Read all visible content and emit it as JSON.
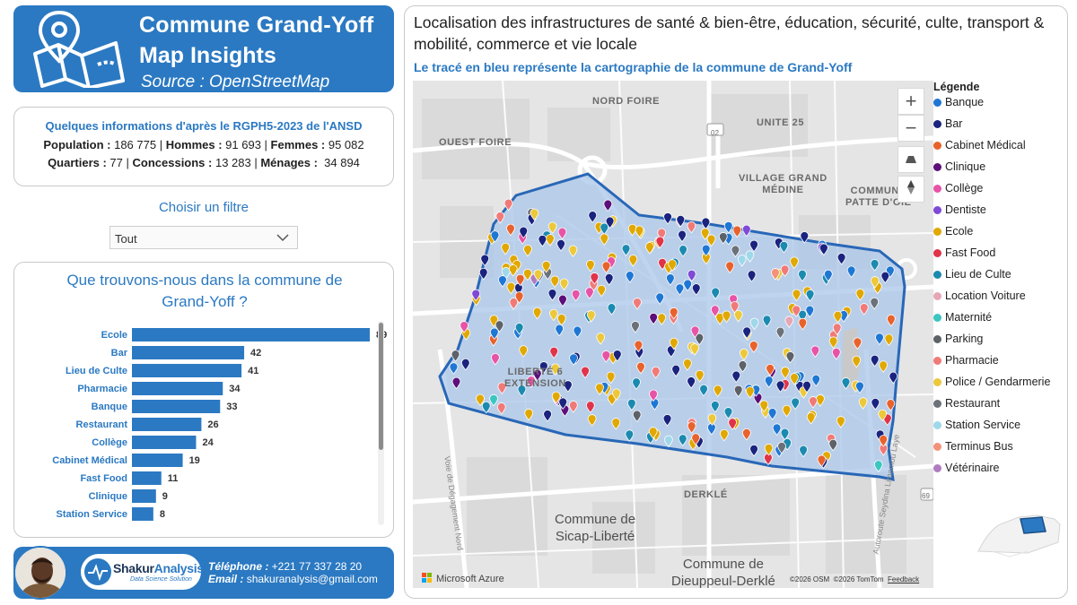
{
  "header": {
    "line1": "Commune Grand-Yoff",
    "line2": "Map Insights",
    "source": "Source : OpenStreetMap",
    "icon": "folded-map-pin-icon"
  },
  "stats": {
    "title": "Quelques informations d'après le RGPH5-2023 de l'ANSD",
    "population_label": "Population :",
    "population_value": " 186 775 | ",
    "hommes_label": "Hommes :",
    "hommes_value": " 91 693 | ",
    "femmes_label": "Femmes :",
    "femmes_value": " 95 082",
    "quartiers_label": "Quartiers :",
    "quartiers_value": " 77 | ",
    "concessions_label": "Concessions :",
    "concessions_value": " 13 283 | ",
    "menages_label": "Ménages :",
    "menages_value": "  34 894"
  },
  "filter": {
    "label": "Choisir un filtre",
    "selected": "Tout"
  },
  "chart_data": {
    "type": "bar",
    "orientation": "horizontal",
    "title": "Que trouvons-nous dans la commune de Grand-Yoff ?",
    "title_line1": "Que trouvons-nous dans la commune de",
    "title_line2": "Grand-Yoff ?",
    "categories": [
      "Ecole",
      "Bar",
      "Lieu de Culte",
      "Pharmacie",
      "Banque",
      "Restaurant",
      "Collège",
      "Cabinet Médical",
      "Fast Food",
      "Clinique",
      "Station Service"
    ],
    "values": [
      89,
      42,
      41,
      34,
      33,
      26,
      24,
      19,
      11,
      9,
      8
    ],
    "xlim": [
      0,
      89
    ],
    "bar_color": "#2b79c2",
    "data_labels": true,
    "grid": false
  },
  "footer": {
    "brand_part1": "Shakur",
    "brand_part2": "Analysis",
    "tagline": "Data Science Solution",
    "phone_label": "Téléphone :",
    "phone_value": " +221 77 337 28 20",
    "email_label": "Email :",
    "email_value": " shakuranalysis@gmail.com",
    "avatar_icon": "profile-photo"
  },
  "map": {
    "title": "Localisation des infrastructures de santé & bien-être, éducation, sécurité, culte, transport & mobilité, commerce et vie locale",
    "subtitle": "Le tracé en bleu représente la cartographie de la commune de Grand-Yoff",
    "labels": {
      "nord_foire": "NORD FOIRE",
      "unite25": "UNITE 25",
      "ouest_foire": "OUEST FOIRE",
      "village1": "VILLAGE GRAND",
      "village2": "MÉDINE",
      "commune_patte1": "COMMUNE",
      "commune_patte2": "PATTE D'OIE",
      "liberte1": "LIBERTÉ 6",
      "liberte2": "EXTENSION",
      "derkle": "DERKLÉ",
      "sicap1": "Commune de",
      "sicap2": "Sicap-Liberté",
      "dieuppeul1": "Commune de",
      "dieuppeul2": "Dieuppeul-Derklé",
      "road02": "02",
      "road69": "69",
      "voie": "Voie de Dégagement Nord",
      "autoroute": "Autoroute Seydina Limamou Laye"
    },
    "controls": {
      "zoom_in": "+",
      "zoom_out": "−",
      "tilt_icon": "tilt-icon",
      "compass_icon": "compass-icon"
    },
    "provider": "Microsoft Azure",
    "attribution_osm": "©2026 OSM",
    "attribution_tomtom": "©2026 TomTom",
    "attribution_feedback": "Feedback"
  },
  "legend": {
    "title": "Légende",
    "items": [
      {
        "label": "Banque",
        "color": "#1f77d4"
      },
      {
        "label": "Bar",
        "color": "#1a237e"
      },
      {
        "label": "Cabinet Médical",
        "color": "#e8622c"
      },
      {
        "label": "Clinique",
        "color": "#5c0f7a"
      },
      {
        "label": "Collège",
        "color": "#e754a6"
      },
      {
        "label": "Dentiste",
        "color": "#7e4ad6"
      },
      {
        "label": "Ecole",
        "color": "#e0a800"
      },
      {
        "label": "Fast Food",
        "color": "#e0344a"
      },
      {
        "label": "Lieu de Culte",
        "color": "#1b8ab0"
      },
      {
        "label": "Location Voiture",
        "color": "#e5a7b4"
      },
      {
        "label": "Maternité",
        "color": "#3cc6c0"
      },
      {
        "label": "Parking",
        "color": "#5d6168"
      },
      {
        "label": "Pharmacie",
        "color": "#f07a78"
      },
      {
        "label": "Police / Gendarmerie",
        "color": "#ecc83a"
      },
      {
        "label": "Restaurant",
        "color": "#6b7178"
      },
      {
        "label": "Station Service",
        "color": "#9fd8ea"
      },
      {
        "label": "Terminus Bus",
        "color": "#f3927a"
      },
      {
        "label": "Vétérinaire",
        "color": "#b07cc0"
      }
    ]
  }
}
